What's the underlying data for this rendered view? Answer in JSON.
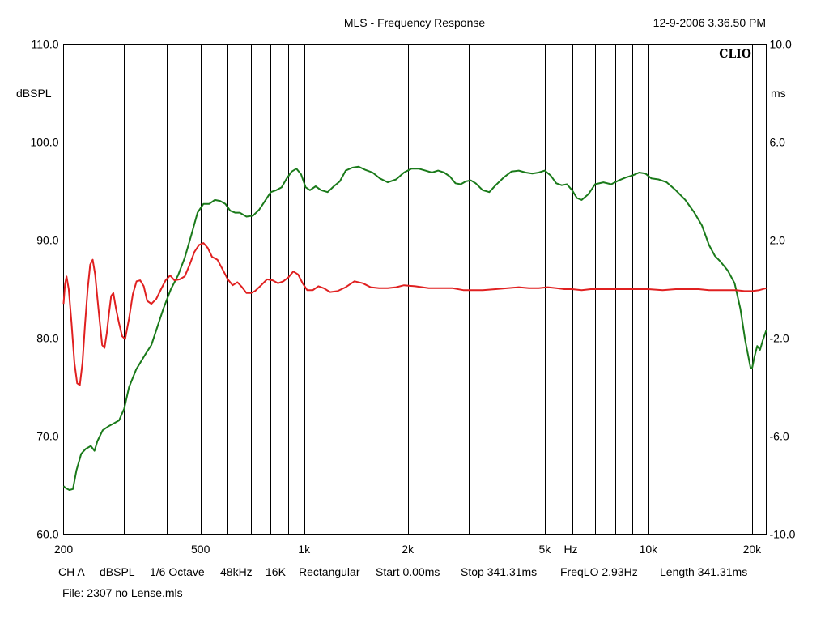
{
  "chart_data": {
    "type": "line",
    "title": "MLS - Frequency Response",
    "timestamp": "12-9-2006 3.36.50 PM",
    "brand": "CLIO",
    "xlabel": "Hz",
    "ylabel": "dBSPL",
    "y2label": "ms",
    "x_scale": "log",
    "xlim": [
      200,
      22000
    ],
    "ylim": [
      60,
      110
    ],
    "y2lim": [
      -10,
      10
    ],
    "grid": true,
    "x_gridlines": [
      300,
      400,
      500,
      600,
      700,
      800,
      900,
      1000,
      2000,
      3000,
      4000,
      5000,
      6000,
      7000,
      8000,
      9000,
      10000,
      20000
    ],
    "x_ticks": [
      {
        "value": 200,
        "label": "200"
      },
      {
        "value": 500,
        "label": "500"
      },
      {
        "value": 1000,
        "label": "1k"
      },
      {
        "value": 2000,
        "label": "2k"
      },
      {
        "value": 5000,
        "label": "5k"
      },
      {
        "value": 10000,
        "label": "10k"
      },
      {
        "value": 20000,
        "label": "20k"
      }
    ],
    "y_ticks": [
      {
        "value": 110,
        "label": "110.0"
      },
      {
        "value": 100,
        "label": "100.0"
      },
      {
        "value": 90,
        "label": "90.0"
      },
      {
        "value": 80,
        "label": "80.0"
      },
      {
        "value": 70,
        "label": "70.0"
      },
      {
        "value": 60,
        "label": "60.0"
      }
    ],
    "y2_ticks": [
      {
        "value": 10,
        "label": "10.0"
      },
      {
        "value": 6,
        "label": "6.0"
      },
      {
        "value": 2,
        "label": "2.0"
      },
      {
        "value": -2,
        "label": "-2.0"
      },
      {
        "value": -6,
        "label": "-6.0"
      },
      {
        "value": -10,
        "label": "-10.0"
      }
    ],
    "series": [
      {
        "axis": "left",
        "color": "#1a7a1a",
        "points": [
          [
            200,
            64.9
          ],
          [
            203,
            64.7
          ],
          [
            208,
            64.5
          ],
          [
            213,
            64.6
          ],
          [
            218,
            66.5
          ],
          [
            225,
            68.2
          ],
          [
            232,
            68.7
          ],
          [
            240,
            69.0
          ],
          [
            246,
            68.5
          ],
          [
            251,
            69.5
          ],
          [
            260,
            70.6
          ],
          [
            270,
            71.0
          ],
          [
            280,
            71.3
          ],
          [
            290,
            71.6
          ],
          [
            300,
            72.8
          ],
          [
            310,
            75.0
          ],
          [
            325,
            76.8
          ],
          [
            345,
            78.3
          ],
          [
            360,
            79.3
          ],
          [
            375,
            81.2
          ],
          [
            390,
            83.0
          ],
          [
            410,
            85.0
          ],
          [
            430,
            86.4
          ],
          [
            450,
            88.2
          ],
          [
            470,
            90.5
          ],
          [
            490,
            92.8
          ],
          [
            510,
            93.7
          ],
          [
            530,
            93.7
          ],
          [
            550,
            94.1
          ],
          [
            570,
            94.0
          ],
          [
            590,
            93.7
          ],
          [
            610,
            93.0
          ],
          [
            630,
            92.8
          ],
          [
            650,
            92.8
          ],
          [
            680,
            92.4
          ],
          [
            710,
            92.5
          ],
          [
            740,
            93.1
          ],
          [
            770,
            94.0
          ],
          [
            800,
            94.9
          ],
          [
            830,
            95.1
          ],
          [
            860,
            95.4
          ],
          [
            890,
            96.3
          ],
          [
            920,
            97.0
          ],
          [
            950,
            97.3
          ],
          [
            980,
            96.7
          ],
          [
            1010,
            95.4
          ],
          [
            1040,
            95.1
          ],
          [
            1080,
            95.5
          ],
          [
            1120,
            95.1
          ],
          [
            1170,
            94.9
          ],
          [
            1220,
            95.5
          ],
          [
            1270,
            96.0
          ],
          [
            1320,
            97.1
          ],
          [
            1380,
            97.4
          ],
          [
            1440,
            97.5
          ],
          [
            1500,
            97.2
          ],
          [
            1580,
            96.9
          ],
          [
            1660,
            96.3
          ],
          [
            1750,
            95.9
          ],
          [
            1850,
            96.2
          ],
          [
            1950,
            96.9
          ],
          [
            2050,
            97.3
          ],
          [
            2150,
            97.3
          ],
          [
            2250,
            97.1
          ],
          [
            2350,
            96.9
          ],
          [
            2450,
            97.1
          ],
          [
            2550,
            96.9
          ],
          [
            2650,
            96.5
          ],
          [
            2750,
            95.8
          ],
          [
            2850,
            95.7
          ],
          [
            2950,
            96.0
          ],
          [
            3050,
            96.1
          ],
          [
            3150,
            95.8
          ],
          [
            3300,
            95.1
          ],
          [
            3450,
            94.9
          ],
          [
            3600,
            95.6
          ],
          [
            3800,
            96.4
          ],
          [
            4000,
            97.0
          ],
          [
            4200,
            97.1
          ],
          [
            4400,
            96.9
          ],
          [
            4600,
            96.8
          ],
          [
            4800,
            96.9
          ],
          [
            5000,
            97.1
          ],
          [
            5200,
            96.6
          ],
          [
            5400,
            95.8
          ],
          [
            5600,
            95.6
          ],
          [
            5800,
            95.7
          ],
          [
            6000,
            95.1
          ],
          [
            6200,
            94.3
          ],
          [
            6400,
            94.1
          ],
          [
            6700,
            94.7
          ],
          [
            7000,
            95.7
          ],
          [
            7400,
            95.9
          ],
          [
            7800,
            95.7
          ],
          [
            8200,
            96.1
          ],
          [
            8600,
            96.4
          ],
          [
            9000,
            96.6
          ],
          [
            9400,
            96.9
          ],
          [
            9800,
            96.8
          ],
          [
            10200,
            96.3
          ],
          [
            10700,
            96.2
          ],
          [
            11300,
            95.9
          ],
          [
            12000,
            95.1
          ],
          [
            12800,
            94.1
          ],
          [
            13600,
            92.8
          ],
          [
            14300,
            91.5
          ],
          [
            15000,
            89.5
          ],
          [
            15600,
            88.4
          ],
          [
            16200,
            87.8
          ],
          [
            17000,
            86.9
          ],
          [
            17800,
            85.6
          ],
          [
            18500,
            83.0
          ],
          [
            19100,
            79.8
          ],
          [
            19500,
            78.2
          ],
          [
            19800,
            77.0
          ],
          [
            20000,
            76.9
          ],
          [
            20300,
            78.0
          ],
          [
            20700,
            79.2
          ],
          [
            21100,
            78.8
          ],
          [
            21500,
            79.8
          ],
          [
            22000,
            80.8
          ]
        ]
      },
      {
        "axis": "left",
        "color": "#e02020",
        "points": [
          [
            200,
            83.5
          ],
          [
            202,
            85.5
          ],
          [
            204,
            86.3
          ],
          [
            207,
            85.0
          ],
          [
            211,
            81.5
          ],
          [
            215,
            77.5
          ],
          [
            219,
            75.4
          ],
          [
            223,
            75.2
          ],
          [
            227,
            77.5
          ],
          [
            231,
            81.5
          ],
          [
            235,
            85.0
          ],
          [
            239,
            87.5
          ],
          [
            243,
            88.0
          ],
          [
            247,
            86.5
          ],
          [
            251,
            84.0
          ],
          [
            255,
            81.5
          ],
          [
            259,
            79.3
          ],
          [
            263,
            79.0
          ],
          [
            267,
            80.5
          ],
          [
            271,
            82.5
          ],
          [
            275,
            84.3
          ],
          [
            279,
            84.6
          ],
          [
            284,
            83.0
          ],
          [
            290,
            81.5
          ],
          [
            296,
            80.2
          ],
          [
            302,
            79.9
          ],
          [
            310,
            82.0
          ],
          [
            318,
            84.5
          ],
          [
            326,
            85.8
          ],
          [
            334,
            85.9
          ],
          [
            342,
            85.3
          ],
          [
            350,
            83.8
          ],
          [
            360,
            83.5
          ],
          [
            372,
            84.0
          ],
          [
            384,
            85.0
          ],
          [
            396,
            85.9
          ],
          [
            408,
            86.4
          ],
          [
            420,
            85.9
          ],
          [
            435,
            86.0
          ],
          [
            450,
            86.3
          ],
          [
            465,
            87.5
          ],
          [
            480,
            88.8
          ],
          [
            495,
            89.5
          ],
          [
            510,
            89.7
          ],
          [
            525,
            89.2
          ],
          [
            540,
            88.3
          ],
          [
            560,
            88.0
          ],
          [
            580,
            87.0
          ],
          [
            600,
            86.0
          ],
          [
            620,
            85.4
          ],
          [
            640,
            85.7
          ],
          [
            660,
            85.2
          ],
          [
            680,
            84.6
          ],
          [
            700,
            84.6
          ],
          [
            720,
            84.8
          ],
          [
            750,
            85.4
          ],
          [
            780,
            86.0
          ],
          [
            810,
            85.9
          ],
          [
            840,
            85.6
          ],
          [
            870,
            85.8
          ],
          [
            900,
            86.2
          ],
          [
            930,
            86.8
          ],
          [
            960,
            86.5
          ],
          [
            990,
            85.6
          ],
          [
            1020,
            84.9
          ],
          [
            1060,
            84.9
          ],
          [
            1100,
            85.3
          ],
          [
            1140,
            85.1
          ],
          [
            1190,
            84.7
          ],
          [
            1250,
            84.8
          ],
          [
            1320,
            85.2
          ],
          [
            1400,
            85.8
          ],
          [
            1480,
            85.6
          ],
          [
            1560,
            85.2
          ],
          [
            1650,
            85.1
          ],
          [
            1750,
            85.1
          ],
          [
            1850,
            85.2
          ],
          [
            1950,
            85.4
          ],
          [
            2100,
            85.3
          ],
          [
            2300,
            85.1
          ],
          [
            2500,
            85.1
          ],
          [
            2700,
            85.1
          ],
          [
            2900,
            84.9
          ],
          [
            3100,
            84.9
          ],
          [
            3300,
            84.9
          ],
          [
            3600,
            85.0
          ],
          [
            3900,
            85.1
          ],
          [
            4200,
            85.2
          ],
          [
            4500,
            85.1
          ],
          [
            4800,
            85.1
          ],
          [
            5100,
            85.2
          ],
          [
            5400,
            85.1
          ],
          [
            5700,
            85.0
          ],
          [
            6000,
            85.0
          ],
          [
            6400,
            84.9
          ],
          [
            6800,
            85.0
          ],
          [
            7300,
            85.0
          ],
          [
            7800,
            85.0
          ],
          [
            8500,
            85.0
          ],
          [
            9200,
            85.0
          ],
          [
            10000,
            85.0
          ],
          [
            11000,
            84.9
          ],
          [
            12000,
            85.0
          ],
          [
            13000,
            85.0
          ],
          [
            14000,
            85.0
          ],
          [
            15000,
            84.9
          ],
          [
            16000,
            84.9
          ],
          [
            17000,
            84.9
          ],
          [
            18000,
            84.9
          ],
          [
            19000,
            84.8
          ],
          [
            20000,
            84.8
          ],
          [
            21000,
            84.9
          ],
          [
            22000,
            85.1
          ]
        ]
      }
    ]
  },
  "footer": {
    "settings": [
      {
        "name": "settings-channel",
        "text": "CH A"
      },
      {
        "name": "settings-units",
        "text": "dBSPL"
      },
      {
        "name": "settings-smoothing",
        "text": "1/6 Octave"
      },
      {
        "name": "settings-sample-rate",
        "text": "48kHz"
      },
      {
        "name": "settings-mls-size",
        "text": "16K"
      },
      {
        "name": "settings-window",
        "text": "Rectangular"
      },
      {
        "name": "settings-start",
        "text": "Start 0.00ms"
      },
      {
        "name": "settings-stop",
        "text": "Stop 341.31ms"
      },
      {
        "name": "settings-freqlo",
        "text": "FreqLO 2.93Hz"
      },
      {
        "name": "settings-length",
        "text": "Length 341.31ms"
      }
    ],
    "file": "File: 2307 no Lense.mls"
  }
}
